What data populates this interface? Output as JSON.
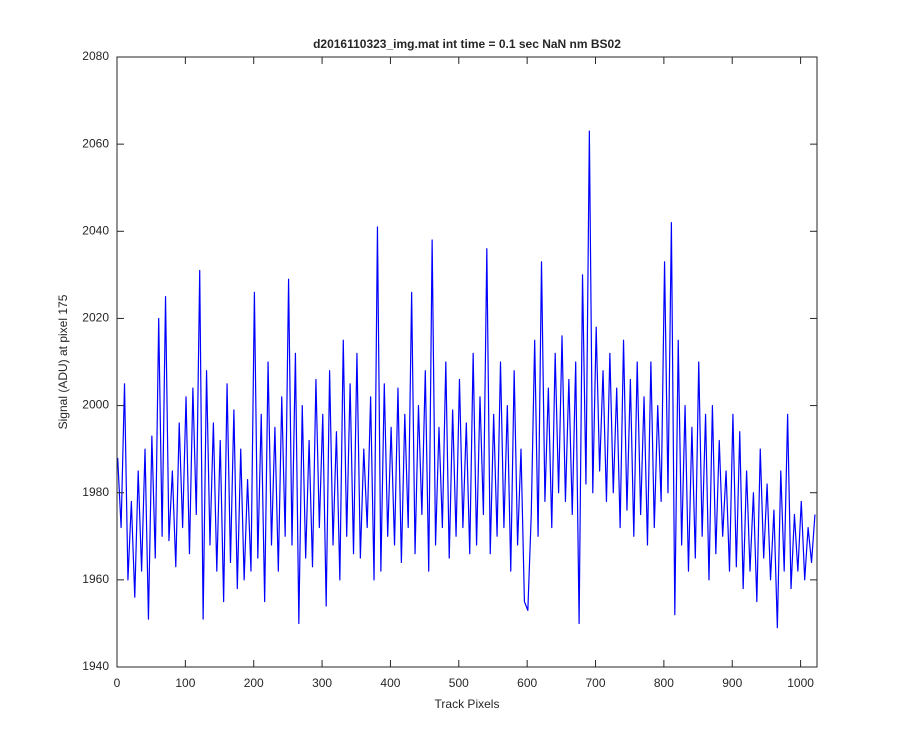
{
  "chart_data": {
    "type": "line",
    "title": "d2016110323_img.mat int time = 0.1 sec  NaN nm BS02",
    "x_label": "Track Pixels",
    "y_label": "Signal (ADU) at pixel 175",
    "xlim": [
      0,
      1024
    ],
    "ylim": [
      1940,
      2080
    ],
    "xticks": [
      0,
      100,
      200,
      300,
      400,
      500,
      600,
      700,
      800,
      900,
      1000
    ],
    "yticks": [
      1940,
      1960,
      1980,
      2000,
      2020,
      2040,
      2060,
      2080
    ],
    "x": [
      1,
      6,
      11,
      16,
      21,
      26,
      31,
      36,
      41,
      46,
      51,
      56,
      61,
      66,
      71,
      76,
      81,
      86,
      91,
      96,
      101,
      106,
      111,
      116,
      121,
      126,
      131,
      136,
      141,
      146,
      151,
      156,
      161,
      166,
      171,
      176,
      181,
      186,
      191,
      196,
      201,
      206,
      211,
      216,
      221,
      226,
      231,
      236,
      241,
      246,
      251,
      256,
      261,
      266,
      271,
      276,
      281,
      286,
      291,
      296,
      301,
      306,
      311,
      316,
      321,
      326,
      331,
      336,
      341,
      346,
      351,
      356,
      361,
      366,
      371,
      376,
      381,
      386,
      391,
      396,
      401,
      406,
      411,
      416,
      421,
      426,
      431,
      436,
      441,
      446,
      451,
      456,
      461,
      466,
      471,
      476,
      481,
      486,
      491,
      496,
      501,
      506,
      511,
      516,
      521,
      526,
      531,
      536,
      541,
      546,
      551,
      556,
      561,
      566,
      571,
      576,
      581,
      586,
      591,
      596,
      601,
      606,
      611,
      616,
      621,
      626,
      631,
      636,
      641,
      646,
      651,
      656,
      661,
      666,
      671,
      676,
      681,
      686,
      691,
      696,
      701,
      706,
      711,
      716,
      721,
      726,
      731,
      736,
      741,
      746,
      751,
      756,
      761,
      766,
      771,
      776,
      781,
      786,
      791,
      796,
      801,
      806,
      811,
      816,
      821,
      826,
      831,
      836,
      841,
      846,
      851,
      856,
      861,
      866,
      871,
      876,
      881,
      886,
      891,
      896,
      901,
      906,
      911,
      916,
      921,
      926,
      931,
      936,
      941,
      946,
      951,
      956,
      961,
      966,
      971,
      976,
      981,
      986,
      991,
      996,
      1001,
      1006,
      1011,
      1016,
      1021
    ],
    "series": [
      {
        "color": "#0000ff",
        "values": [
          1988,
          1972,
          2005,
          1960,
          1978,
          1956,
          1985,
          1962,
          1990,
          1951,
          1993,
          1965,
          2020,
          1970,
          2025,
          1969,
          1985,
          1963,
          1996,
          1972,
          2002,
          1966,
          2004,
          1975,
          2031,
          1951,
          2008,
          1968,
          1996,
          1962,
          1992,
          1955,
          2005,
          1964,
          1999,
          1958,
          1990,
          1960,
          1983,
          1962,
          2026,
          1965,
          1998,
          1955,
          2010,
          1968,
          1995,
          1962,
          2002,
          1970,
          2029,
          1968,
          2012,
          1950,
          2000,
          1965,
          1992,
          1963,
          2006,
          1972,
          1998,
          1954,
          2008,
          1968,
          1994,
          1960,
          2015,
          1970,
          2005,
          1966,
          2012,
          1965,
          1990,
          1972,
          2002,
          1960,
          2041,
          1962,
          2005,
          1970,
          1995,
          1968,
          2004,
          1964,
          1998,
          1972,
          2026,
          1966,
          2000,
          1975,
          2008,
          1962,
          2038,
          1968,
          1995,
          1972,
          2010,
          1965,
          1999,
          1970,
          2006,
          1972,
          1996,
          1966,
          2012,
          1968,
          2002,
          1975,
          2036,
          1966,
          1998,
          1970,
          2010,
          1972,
          2000,
          1962,
          2008,
          1968,
          1990,
          1955,
          1953,
          1975,
          2015,
          1970,
          2033,
          1978,
          2004,
          1972,
          2012,
          1980,
          2016,
          1978,
          2006,
          1975,
          2010,
          1950,
          2030,
          1982,
          2063,
          1980,
          2018,
          1985,
          2008,
          1978,
          2012,
          1980,
          2004,
          1972,
          2015,
          1976,
          2006,
          1970,
          2010,
          1975,
          2002,
          1968,
          2010,
          1972,
          2000,
          1978,
          2033,
          1980,
          2042,
          1952,
          2015,
          1968,
          2000,
          1962,
          1995,
          1965,
          2010,
          1970,
          1998,
          1960,
          2000,
          1966,
          1992,
          1970,
          1985,
          1962,
          1998,
          1963,
          1994,
          1958,
          1985,
          1962,
          1980,
          1955,
          1990,
          1965,
          1982,
          1960,
          1976,
          1949,
          1985,
          1962,
          1998,
          1958,
          1975,
          1962,
          1978,
          1960,
          1972,
          1964,
          1975
        ]
      }
    ]
  }
}
